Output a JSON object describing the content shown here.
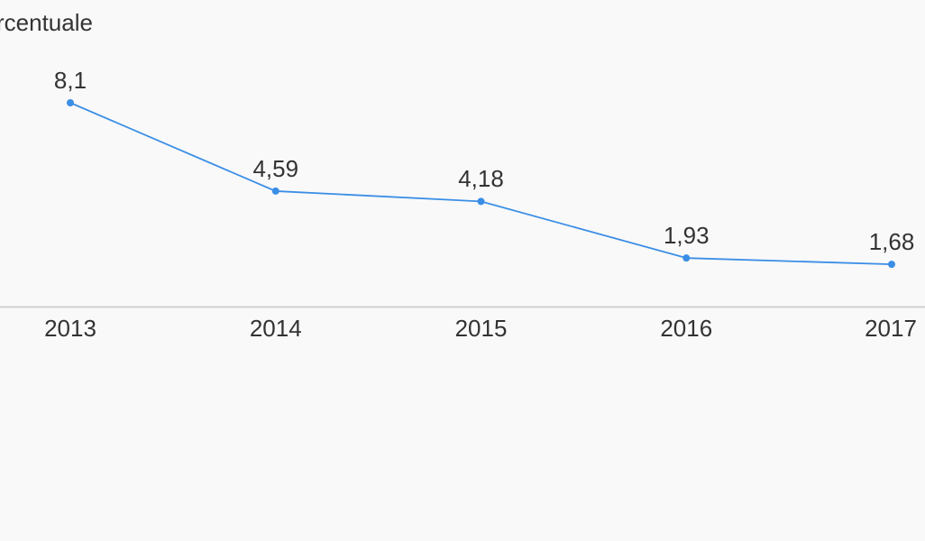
{
  "chart_data": {
    "type": "line",
    "title": "rcentuale",
    "categories": [
      "2013",
      "2014",
      "2015",
      "2016",
      "2017"
    ],
    "series": [
      {
        "name": null,
        "color": "#3a8ee6",
        "values": [
          8.1,
          4.59,
          4.18,
          1.93,
          1.68
        ],
        "value_labels": [
          "8,1",
          "4,59",
          "4,18",
          "1,93",
          "1,68"
        ]
      }
    ]
  }
}
